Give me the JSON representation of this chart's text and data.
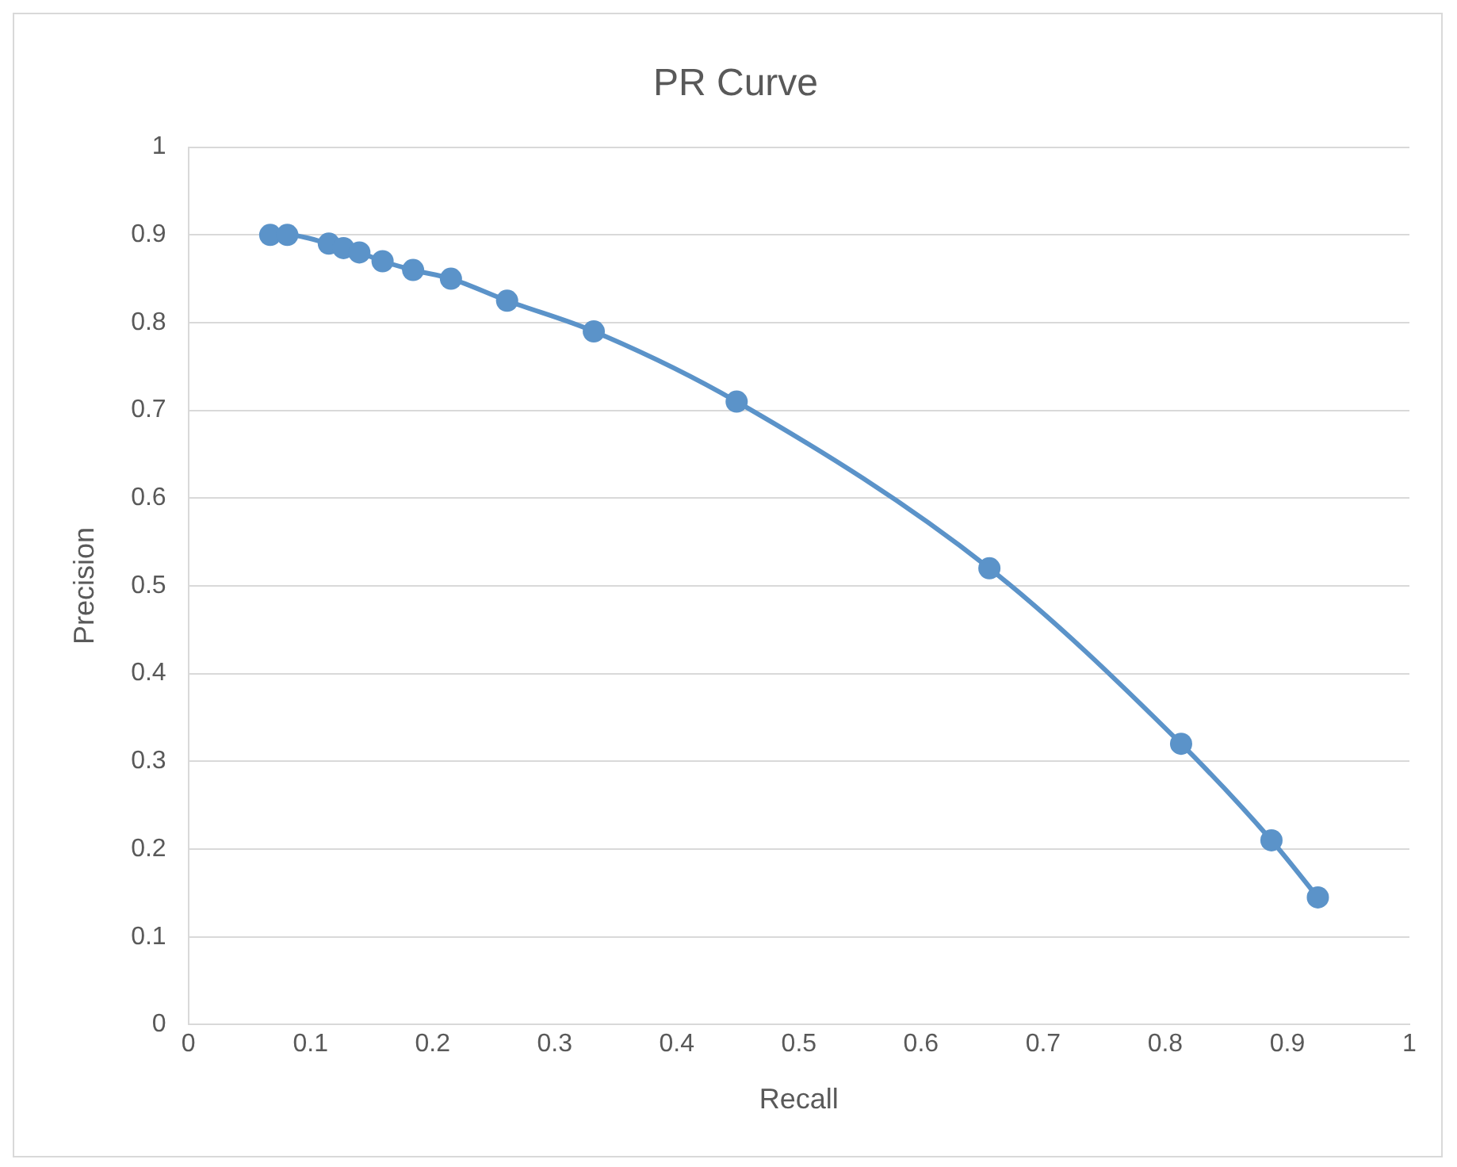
{
  "chart_data": {
    "type": "line",
    "title": "PR Curve",
    "xlabel": "Recall",
    "ylabel": "Precision",
    "x": [
      0.067,
      0.081,
      0.115,
      0.127,
      0.14,
      0.159,
      0.184,
      0.215,
      0.261,
      0.332,
      0.449,
      0.656,
      0.813,
      0.887,
      0.925
    ],
    "series": [
      {
        "color": "#5b93c9",
        "values": [
          0.9,
          0.9,
          0.89,
          0.885,
          0.88,
          0.87,
          0.86,
          0.85,
          0.825,
          0.79,
          0.71,
          0.52,
          0.32,
          0.21,
          0.145
        ]
      }
    ],
    "xlim": [
      0,
      1
    ],
    "xticks": [
      0,
      0.1,
      0.2,
      0.3,
      0.4,
      0.5,
      0.6,
      0.7,
      0.8,
      0.9,
      1
    ],
    "ylim": [
      0,
      1
    ],
    "yticks": [
      0,
      0.1,
      0.2,
      0.3,
      0.4,
      0.5,
      0.6,
      0.7,
      0.8,
      0.9,
      1
    ],
    "grid": "y",
    "legend": false,
    "marker": "circle",
    "line_style": "solid"
  }
}
